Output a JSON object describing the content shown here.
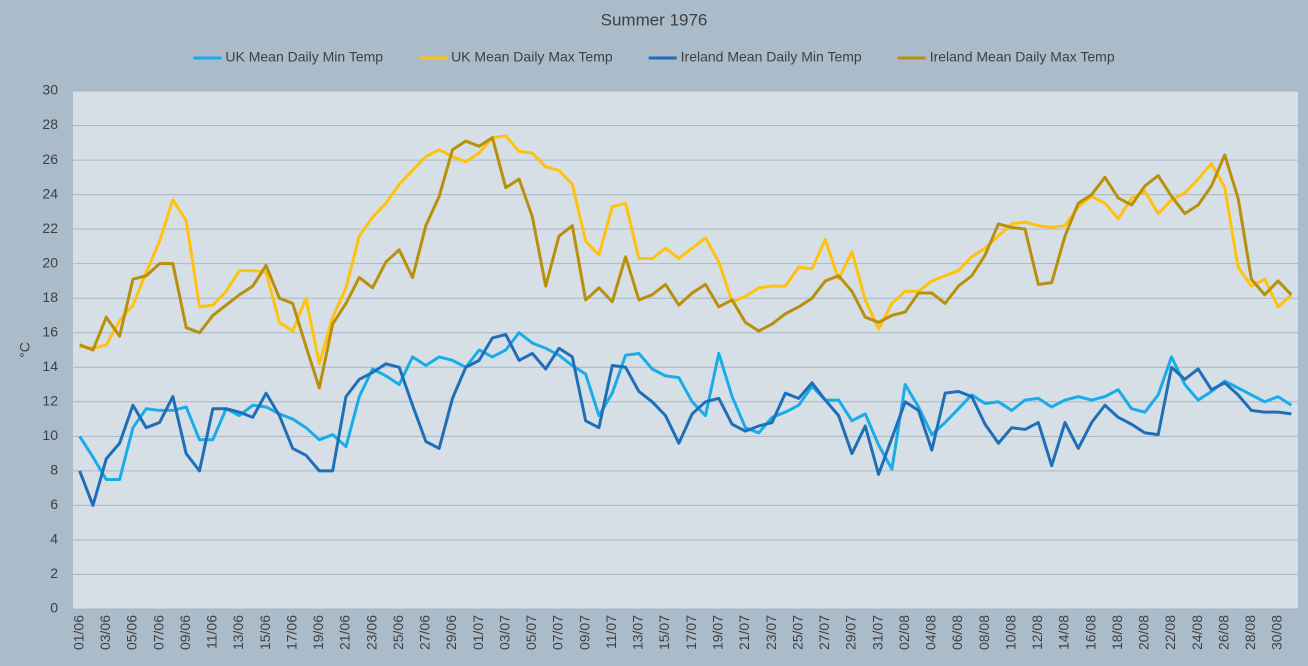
{
  "chart_data": {
    "type": "line",
    "title": "Summer 1976",
    "y_label": "°C",
    "categories": [
      "01/06",
      null,
      "03/06",
      null,
      "05/06",
      null,
      "07/06",
      null,
      "09/06",
      null,
      "11/06",
      null,
      "13/06",
      null,
      "15/06",
      null,
      "17/06",
      null,
      "19/06",
      null,
      "21/06",
      null,
      "23/06",
      null,
      "25/06",
      null,
      "27/06",
      null,
      "29/06",
      null,
      "01/07",
      null,
      "03/07",
      null,
      "05/07",
      null,
      "07/07",
      null,
      "09/07",
      null,
      "11/07",
      null,
      "13/07",
      null,
      "15/07",
      null,
      "17/07",
      null,
      "19/07",
      null,
      "21/07",
      null,
      "23/07",
      null,
      "25/07",
      null,
      "27/07",
      null,
      "29/07",
      null,
      "31/07",
      null,
      "02/08",
      null,
      "04/08",
      null,
      "06/08",
      null,
      "08/08",
      null,
      "10/08",
      null,
      "12/08",
      null,
      "14/08",
      null,
      "16/08",
      null,
      "18/08",
      null,
      "20/08",
      null,
      "22/08",
      null,
      "24/08",
      null,
      "26/08",
      null,
      "28/08",
      null,
      "30/08",
      null
    ],
    "series": [
      {
        "name": "UK Mean Daily Min Temp",
        "color": "#1aace8",
        "values": [
          10.0,
          8.8,
          7.5,
          7.5,
          10.5,
          11.6,
          11.5,
          11.5,
          11.7,
          9.8,
          9.8,
          11.6,
          11.2,
          11.8,
          11.7,
          11.3,
          11.0,
          10.5,
          9.8,
          10.1,
          9.4,
          12.3,
          13.9,
          13.5,
          13.0,
          14.6,
          14.1,
          14.6,
          14.4,
          14.0,
          15.0,
          14.6,
          15.0,
          16.0,
          15.4,
          15.1,
          14.7,
          14.1,
          13.6,
          11.2,
          12.5,
          14.7,
          14.8,
          13.9,
          13.5,
          13.4,
          12.0,
          11.2,
          14.8,
          12.3,
          10.5,
          10.2,
          11.1,
          11.4,
          11.8,
          12.9,
          12.1,
          12.1,
          10.9,
          11.3,
          9.5,
          8.1,
          13.0,
          11.7,
          10.1,
          10.8,
          11.6,
          12.4,
          11.9,
          12.0,
          11.5,
          12.1,
          12.2,
          11.7,
          12.1,
          12.3,
          12.1,
          12.3,
          12.7,
          11.6,
          11.4,
          12.4,
          14.6,
          13.0,
          12.1,
          12.6,
          13.2,
          12.8,
          12.4,
          12.0,
          12.3,
          11.8
        ]
      },
      {
        "name": "UK Mean Daily Max Temp",
        "color": "#ffc20e",
        "values": [
          15.2,
          15.1,
          15.3,
          16.7,
          17.6,
          19.5,
          21.3,
          23.7,
          22.5,
          17.5,
          17.6,
          18.4,
          19.6,
          19.6,
          19.5,
          16.6,
          16.1,
          18.0,
          14.2,
          16.9,
          18.6,
          21.6,
          22.7,
          23.5,
          24.6,
          25.4,
          26.2,
          26.6,
          26.2,
          25.9,
          26.4,
          27.3,
          27.4,
          26.5,
          26.4,
          25.6,
          25.4,
          24.6,
          21.3,
          20.5,
          23.3,
          23.5,
          20.3,
          20.3,
          20.9,
          20.3,
          20.9,
          21.5,
          20.1,
          17.8,
          18.1,
          18.6,
          18.7,
          18.7,
          19.8,
          19.7,
          21.4,
          19.1,
          20.7,
          17.9,
          16.2,
          17.7,
          18.4,
          18.4,
          19.0,
          19.3,
          19.6,
          20.4,
          20.9,
          21.6,
          22.3,
          22.4,
          22.2,
          22.1,
          22.2,
          23.3,
          23.9,
          23.5,
          22.6,
          23.8,
          24.2,
          22.9,
          23.7,
          24.1,
          24.9,
          25.8,
          24.4,
          19.8,
          18.7,
          19.1,
          17.5,
          18.2
        ]
      },
      {
        "name": "Ireland Mean Daily Min Temp",
        "color": "#1f6fb8",
        "values": [
          8.0,
          6.0,
          8.7,
          9.6,
          11.8,
          10.5,
          10.8,
          12.3,
          9.0,
          8.0,
          11.6,
          11.6,
          11.4,
          11.1,
          12.5,
          11.2,
          9.3,
          8.9,
          8.0,
          8.0,
          12.3,
          13.3,
          13.7,
          14.2,
          14.0,
          11.8,
          9.7,
          9.3,
          12.2,
          14.0,
          14.4,
          15.7,
          15.9,
          14.4,
          14.8,
          13.9,
          15.1,
          14.6,
          10.9,
          10.5,
          14.1,
          14.0,
          12.6,
          12.0,
          11.2,
          9.6,
          11.3,
          12.0,
          12.2,
          10.7,
          10.3,
          10.6,
          10.8,
          12.5,
          12.2,
          13.1,
          12.1,
          11.2,
          9.0,
          10.6,
          7.8,
          9.9,
          12.0,
          11.5,
          9.2,
          12.5,
          12.6,
          12.3,
          10.7,
          9.6,
          10.5,
          10.4,
          10.8,
          8.3,
          10.8,
          9.3,
          10.8,
          11.8,
          11.1,
          10.7,
          10.2,
          10.1,
          14.0,
          13.3,
          13.9,
          12.7,
          13.1,
          12.4,
          11.5,
          11.4,
          11.4,
          11.3
        ]
      },
      {
        "name": "Ireland Mean Daily Max Temp",
        "color": "#b8900e",
        "values": [
          15.3,
          15.0,
          16.9,
          15.8,
          19.1,
          19.3,
          20.0,
          20.0,
          16.3,
          16.0,
          17.0,
          17.6,
          18.2,
          18.7,
          19.9,
          18.0,
          17.7,
          15.2,
          12.8,
          16.5,
          17.7,
          19.2,
          18.6,
          20.1,
          20.8,
          19.2,
          22.2,
          23.9,
          26.6,
          27.1,
          26.8,
          27.3,
          24.4,
          24.9,
          22.7,
          18.7,
          21.6,
          22.2,
          17.9,
          18.6,
          17.8,
          20.4,
          17.9,
          18.2,
          18.8,
          17.6,
          18.3,
          18.8,
          17.5,
          17.9,
          16.6,
          16.1,
          16.5,
          17.1,
          17.5,
          18.0,
          19.0,
          19.3,
          18.4,
          16.9,
          16.6,
          17.0,
          17.2,
          18.3,
          18.3,
          17.7,
          18.7,
          19.3,
          20.5,
          22.3,
          22.1,
          22.0,
          18.8,
          18.9,
          21.6,
          23.5,
          24.0,
          25.0,
          23.8,
          23.4,
          24.5,
          25.1,
          23.9,
          22.9,
          23.4,
          24.5,
          26.3,
          23.8,
          19.1,
          18.2,
          19.0,
          18.2
        ]
      }
    ],
    "ylim": [
      0,
      30
    ],
    "yticks": [
      0,
      2,
      4,
      6,
      8,
      10,
      12,
      14,
      16,
      18,
      20,
      22,
      24,
      26,
      28,
      30
    ],
    "grid": true,
    "legend": "top"
  }
}
